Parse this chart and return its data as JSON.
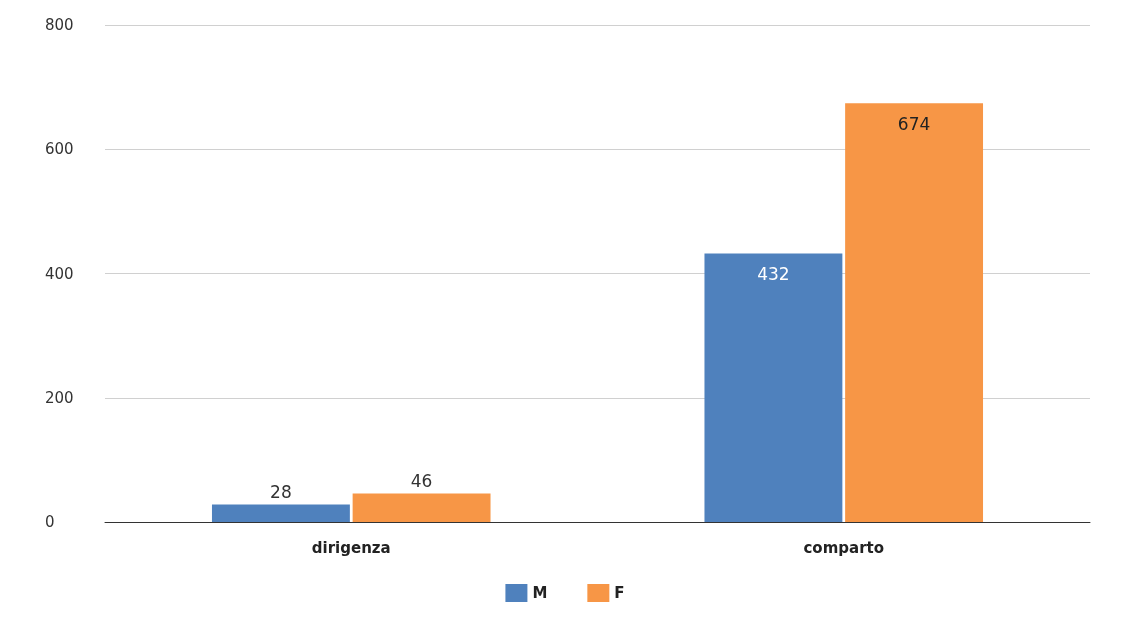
{
  "chart_data": {
    "type": "bar",
    "categories": [
      "dirigenza",
      "comparto"
    ],
    "series": [
      {
        "name": "M",
        "color": "#4f81bd",
        "values": [
          28,
          432
        ]
      },
      {
        "name": "F",
        "color": "#f79646",
        "values": [
          46,
          674
        ]
      }
    ],
    "ylim": [
      0,
      800
    ],
    "yticks": [
      0,
      200,
      400,
      600,
      800
    ],
    "grid": "y",
    "legend": "bottom",
    "data_labels": true
  }
}
